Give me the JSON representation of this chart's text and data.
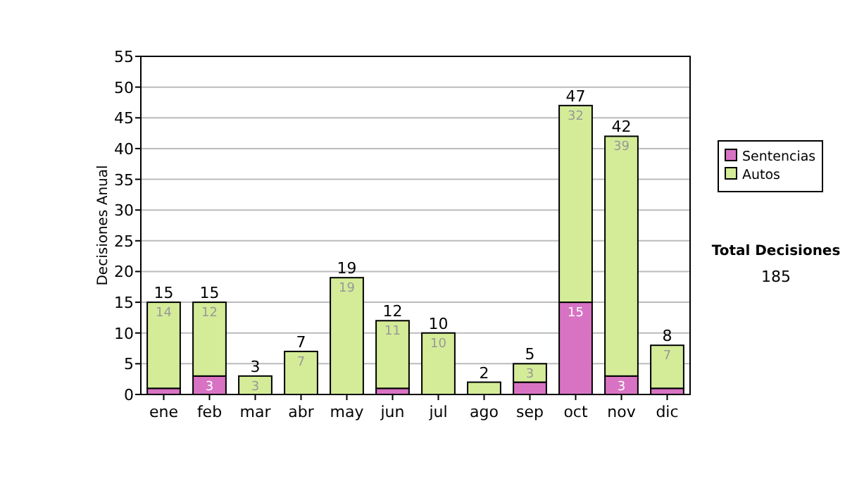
{
  "chart_data": {
    "type": "bar",
    "stacked": true,
    "ylabel": "Decisiones Anual",
    "categories": [
      "ene",
      "feb",
      "mar",
      "abr",
      "may",
      "jun",
      "jul",
      "ago",
      "sep",
      "oct",
      "nov",
      "dic"
    ],
    "series": [
      {
        "name": "Sentencias",
        "color": "#d873c4",
        "values": [
          1,
          3,
          0,
          0,
          0,
          1,
          0,
          0,
          2,
          15,
          3,
          1
        ],
        "value_labels": [
          null,
          "3",
          null,
          null,
          null,
          null,
          null,
          null,
          null,
          "15",
          "3",
          null
        ]
      },
      {
        "name": "Autos",
        "color": "#d4ec98",
        "values": [
          14,
          12,
          3,
          7,
          19,
          11,
          10,
          2,
          3,
          32,
          39,
          7
        ],
        "value_labels": [
          "14",
          "12",
          "3",
          "7",
          "19",
          "11",
          "10",
          null,
          "3",
          "32",
          "39",
          "7"
        ]
      }
    ],
    "totals": [
      "15",
      "15",
      "3",
      "7",
      "19",
      "12",
      "10",
      "2",
      "5",
      "47",
      "42",
      "8"
    ],
    "ylim": [
      0,
      55
    ],
    "yticks": [
      0,
      5,
      10,
      15,
      20,
      25,
      30,
      35,
      40,
      45,
      50,
      55
    ],
    "grid": "y",
    "legend": "right",
    "annotations": [
      "Total Decisiones",
      "185"
    ]
  }
}
